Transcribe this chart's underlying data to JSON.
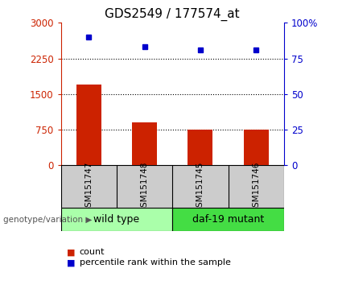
{
  "title": "GDS2549 / 177574_at",
  "samples": [
    "GSM151747",
    "GSM151748",
    "GSM151745",
    "GSM151746"
  ],
  "counts": [
    1700,
    900,
    750,
    750
  ],
  "percentiles": [
    90,
    83,
    81,
    81
  ],
  "bar_color": "#cc2200",
  "dot_color": "#0000cc",
  "ylim_left": [
    0,
    3000
  ],
  "ylim_right": [
    0,
    100
  ],
  "yticks_left": [
    0,
    750,
    1500,
    2250,
    3000
  ],
  "yticks_right": [
    0,
    25,
    50,
    75,
    100
  ],
  "ytick_labels_left": [
    "0",
    "750",
    "1500",
    "2250",
    "3000"
  ],
  "ytick_labels_right": [
    "0",
    "25",
    "50",
    "75",
    "100%"
  ],
  "grid_values": [
    750,
    1500,
    2250
  ],
  "groups": [
    {
      "label": "wild type",
      "indices": [
        0,
        1
      ],
      "color": "#aaffaa"
    },
    {
      "label": "daf-19 mutant",
      "indices": [
        2,
        3
      ],
      "color": "#44dd44"
    }
  ],
  "xlabel_left": "genotype/variation",
  "legend_count": "count",
  "legend_percentile": "percentile rank within the sample",
  "bar_width": 0.45,
  "sample_area_color": "#cccccc",
  "title_fontsize": 11,
  "tick_fontsize": 8.5,
  "sample_fontsize": 7.5,
  "group_fontsize": 9,
  "legend_fontsize": 8
}
